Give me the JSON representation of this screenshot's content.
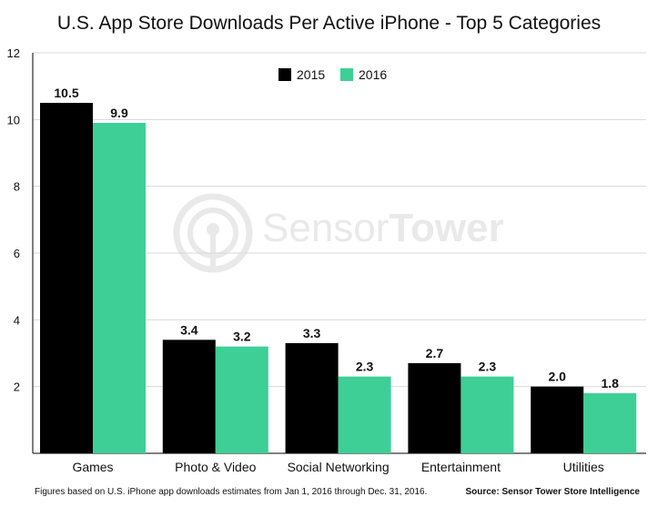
{
  "chart_data": {
    "type": "bar",
    "title": "U.S. App Store Downloads Per Active iPhone - Top 5 Categories",
    "categories": [
      "Games",
      "Photo & Video",
      "Social Networking",
      "Entertainment",
      "Utilities"
    ],
    "series": [
      {
        "name": "2015",
        "values": [
          10.5,
          3.4,
          3.3,
          2.7,
          2.0
        ],
        "labels": [
          "10.5",
          "3.4",
          "3.3",
          "2.7",
          "2.0"
        ],
        "color": "#000000"
      },
      {
        "name": "2016",
        "values": [
          9.9,
          3.2,
          2.3,
          2.3,
          1.8
        ],
        "labels": [
          "9.9",
          "3.2",
          "2.3",
          "2.3",
          "1.8"
        ],
        "color": "#3ecf96"
      }
    ],
    "yticks": [
      "2",
      "4",
      "6",
      "8",
      "10",
      "12"
    ],
    "ylim": [
      0,
      12
    ],
    "grid": true,
    "legend": "top-center"
  },
  "watermark": {
    "part1": "Sensor",
    "part2": "Tower"
  },
  "footnote": "Figures based on U.S. iPhone app downloads estimates from Jan 1, 2016 through Dec. 31, 2016.",
  "source": "Source: Sensor Tower Store Intelligence",
  "colors": {
    "grid": "#d9d9d9",
    "axis": "#000000",
    "watermark": "#e9e9e9"
  }
}
